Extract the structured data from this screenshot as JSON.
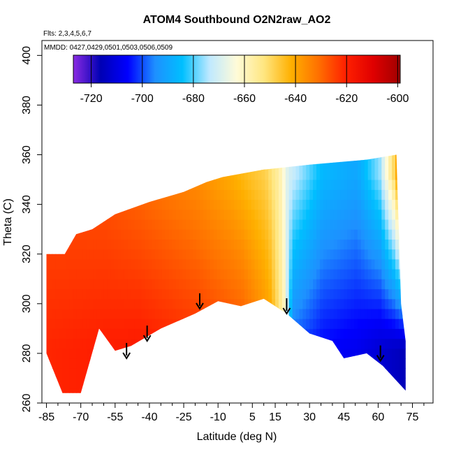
{
  "chart_data": {
    "type": "heatmap",
    "title": "ATOM4 Southbound O2N2raw_AO2",
    "flights_note": "Flts: 2,3,4,5,6,7",
    "dates_note": "MMDD: 0427,0429,0501,0503,0506,0509",
    "xlabel": "Latitude (deg N)",
    "ylabel": "Theta (C)",
    "xlim": [
      -87,
      84
    ],
    "ylim": [
      260,
      406
    ],
    "x_ticks": [
      -85,
      -70,
      -55,
      -40,
      -25,
      -10,
      5,
      15,
      30,
      45,
      60,
      75
    ],
    "y_ticks": [
      260,
      280,
      300,
      320,
      340,
      360,
      380,
      400
    ],
    "colorbar": {
      "range": [
        -727,
        -599
      ],
      "ticks": [
        -720,
        -700,
        -680,
        -660,
        -640,
        -620,
        -600
      ],
      "colors": [
        "#8a2be2",
        "#0000b4",
        "#0000ff",
        "#1e90ff",
        "#00bfff",
        "#bfe9ff",
        "#fffbd8",
        "#ffe680",
        "#ffb000",
        "#ff7000",
        "#ff2000",
        "#e00000",
        "#a00000"
      ]
    },
    "surface": {
      "note": "Approximate curtain boundary (latitude, theta) and value transects (latitude, O2N2raw_AO2)",
      "top_boundary": [
        [
          -85,
          320
        ],
        [
          -77,
          320
        ],
        [
          -72,
          328
        ],
        [
          -65,
          330
        ],
        [
          -55,
          336
        ],
        [
          -40,
          341
        ],
        [
          -25,
          345
        ],
        [
          -15,
          349
        ],
        [
          -8,
          351
        ],
        [
          10,
          354
        ],
        [
          30,
          356
        ],
        [
          55,
          358
        ],
        [
          68,
          360
        ],
        [
          70,
          300
        ],
        [
          72,
          285
        ]
      ],
      "bottom_boundary": [
        [
          -85,
          280
        ],
        [
          -78,
          264
        ],
        [
          -70,
          264
        ],
        [
          -62,
          290
        ],
        [
          -55,
          281
        ],
        [
          -48,
          283
        ],
        [
          -35,
          290
        ],
        [
          -20,
          296
        ],
        [
          -10,
          301
        ],
        [
          0,
          299
        ],
        [
          10,
          302
        ],
        [
          20,
          296
        ],
        [
          30,
          288
        ],
        [
          40,
          285
        ],
        [
          45,
          278
        ],
        [
          55,
          280
        ],
        [
          62,
          275
        ],
        [
          72,
          265
        ]
      ],
      "lower_transect": [
        [
          -85,
          -621
        ],
        [
          -65,
          -620
        ],
        [
          -45,
          -619
        ],
        [
          -20,
          -622
        ],
        [
          0,
          -626
        ],
        [
          12,
          -637
        ],
        [
          18,
          -658
        ],
        [
          22,
          -700
        ],
        [
          35,
          -706
        ],
        [
          50,
          -708
        ],
        [
          60,
          -712
        ],
        [
          72,
          -716
        ]
      ],
      "upper_transect": [
        [
          -85,
          -627
        ],
        [
          -60,
          -628
        ],
        [
          -40,
          -632
        ],
        [
          -20,
          -636
        ],
        [
          -5,
          -641
        ],
        [
          10,
          -648
        ],
        [
          16,
          -657
        ],
        [
          20,
          -670
        ],
        [
          35,
          -686
        ],
        [
          50,
          -690
        ],
        [
          60,
          -676
        ],
        [
          66,
          -650
        ],
        [
          70,
          -624
        ]
      ]
    },
    "arrows": [
      {
        "lat": -50,
        "theta": 278
      },
      {
        "lat": -41,
        "theta": 285
      },
      {
        "lat": -18,
        "theta": 298
      },
      {
        "lat": 20,
        "theta": 296
      },
      {
        "lat": 61,
        "theta": 277
      }
    ]
  }
}
